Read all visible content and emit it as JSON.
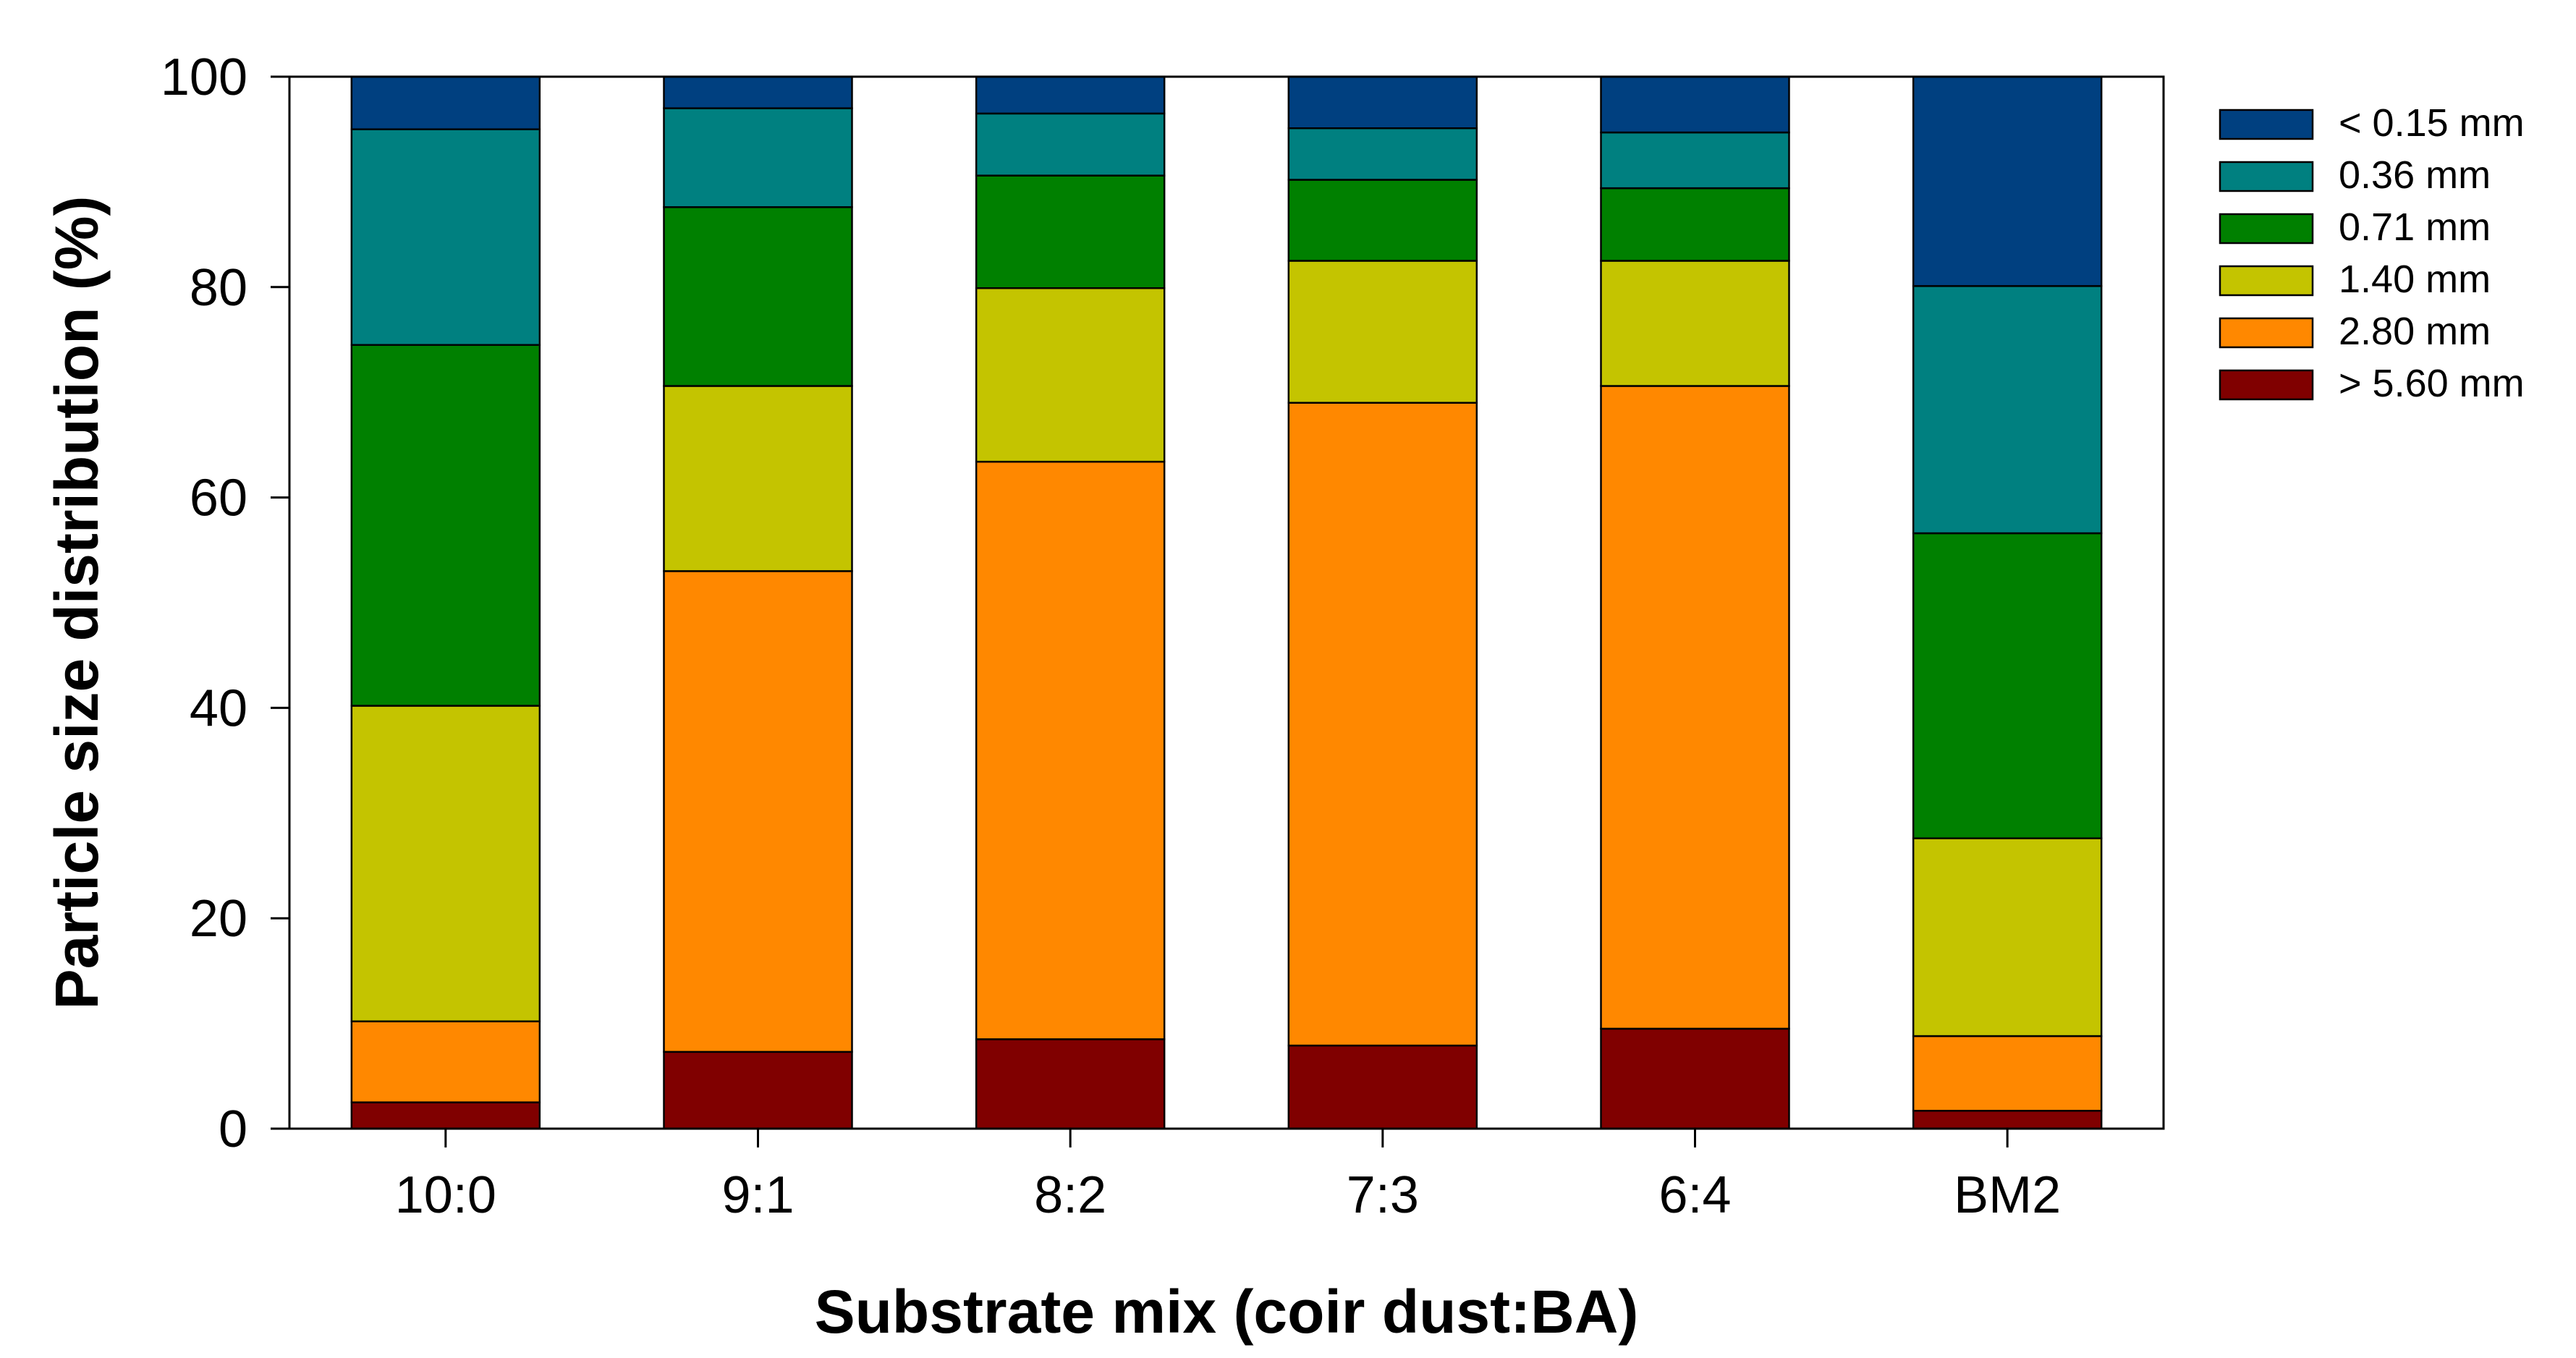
{
  "chart_data": {
    "type": "bar",
    "stacked": true,
    "title": "",
    "xlabel": "Substrate mix (coir dust:BA)",
    "ylabel": "Particle size distribution (%)",
    "ylim": [
      0,
      100
    ],
    "yticks": [
      0,
      20,
      40,
      60,
      80,
      100
    ],
    "grid": false,
    "legend_position": "right",
    "categories": [
      "10:0",
      "9:1",
      "8:2",
      "7:3",
      "6:4",
      "BM2"
    ],
    "series": [
      {
        "name": "> 5.60 mm",
        "color": "#800000",
        "values": [
          2.5,
          7.3,
          8.5,
          7.9,
          9.5,
          1.7
        ]
      },
      {
        "name": "2.80 mm",
        "color": "#ff8800",
        "values": [
          7.7,
          45.7,
          54.9,
          61.1,
          61.1,
          7.1
        ]
      },
      {
        "name": "1.40 mm",
        "color": "#c4c400",
        "values": [
          30.0,
          17.6,
          16.5,
          13.5,
          11.9,
          18.8
        ]
      },
      {
        "name": "0.71 mm",
        "color": "#008000",
        "values": [
          34.3,
          17.0,
          10.7,
          7.7,
          6.9,
          29.0
        ]
      },
      {
        "name": "0.36 mm",
        "color": "#008080",
        "values": [
          20.5,
          9.4,
          5.9,
          4.9,
          5.3,
          23.5
        ]
      },
      {
        "name": "< 0.15 mm",
        "color": "#004080",
        "values": [
          5.0,
          3.0,
          3.5,
          4.9,
          5.3,
          19.9
        ]
      }
    ]
  }
}
